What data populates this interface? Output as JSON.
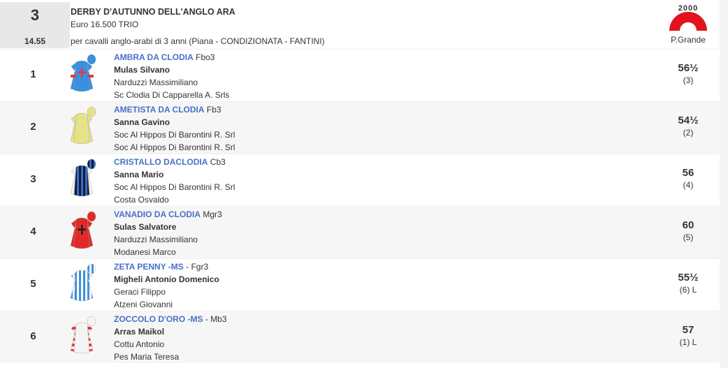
{
  "race": {
    "number": "3",
    "time": "14.55",
    "title": "DERBY D'AUTUNNO DELL'ANGLO ARA",
    "purse": "Euro 16.500 TRIO",
    "conditions": "per cavalli anglo-arabi di 3 anni (Piana -  CONDIZIONATA  - FANTINI)",
    "distance": "2000",
    "track": "P.Grande",
    "track_color": "#e3131b"
  },
  "runners": [
    {
      "number": "1",
      "name": "AMBRA DA CLODIA",
      "info": "Fbo3",
      "jockey": "Mulas Silvano",
      "trainer": "Narduzzi Massimiliano",
      "owner": "Sc Clodia Di Capparella A. Srls",
      "weight": "56½",
      "draw": "(3)",
      "silks": {
        "body": "#3a8fe0",
        "accent": "#e8383a",
        "pattern": "cross-armbands"
      }
    },
    {
      "number": "2",
      "name": "AMETISTA DA CLODIA",
      "info": "Fb3",
      "jockey": "Sanna Gavino",
      "trainer": "Soc Al Hippos Di Barontini R. Srl",
      "owner": "Soc Al Hippos Di Barontini R. Srl",
      "weight": "54½",
      "draw": "(2)",
      "silks": {
        "body": "#f2ee3a",
        "accent": "#d8d8d8",
        "pattern": "stripes"
      }
    },
    {
      "number": "3",
      "name": "CRISTALLO DACLODIA",
      "info": "Cb3",
      "jockey": "Sanna Mario",
      "trainer": "Soc Al Hippos Di Barontini R. Srl",
      "owner": "Costa Osvaldo",
      "weight": "56",
      "draw": "(4)",
      "silks": {
        "body": "#1a1a2a",
        "accent": "#2f6fd0",
        "pattern": "stripes-white-sleeves"
      }
    },
    {
      "number": "4",
      "name": "VANADIO DA CLODIA",
      "info": "Mgr3",
      "jockey": "Sulas Salvatore",
      "trainer": "Narduzzi Massimiliano",
      "owner": "Modanesi Marco",
      "weight": "60",
      "draw": "(5)",
      "silks": {
        "body": "#e02a2a",
        "accent": "#222222",
        "pattern": "cross"
      }
    },
    {
      "number": "5",
      "name": "ZETA PENNY -MS",
      "info": "- Fgr3",
      "jockey": "Migheli Antonio Domenico",
      "trainer": "Geraci Filippo",
      "owner": "Atzeni Giovanni",
      "weight": "55½",
      "draw": "(6) L",
      "silks": {
        "body": "#3a8fe0",
        "accent": "#ffffff",
        "pattern": "stripes"
      }
    },
    {
      "number": "6",
      "name": "ZOCCOLO D'ORO -MS",
      "info": "- Mb3",
      "jockey": "Arras Maikol",
      "trainer": "Cottu Antonio",
      "owner": "Pes Maria Teresa",
      "weight": "57",
      "draw": "(1) L",
      "silks": {
        "body": "#f4f4f4",
        "accent": "#e8383a",
        "pattern": "hooped-sleeves"
      }
    }
  ]
}
